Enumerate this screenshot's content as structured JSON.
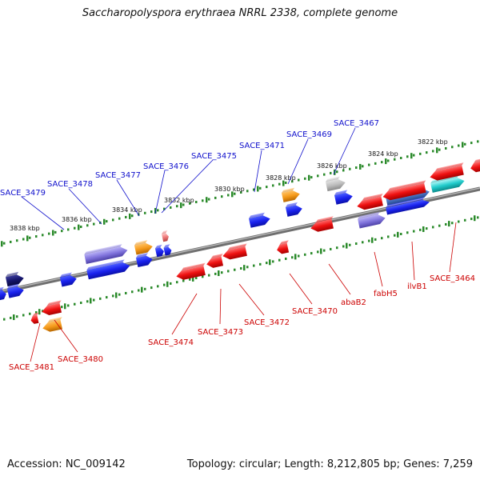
{
  "title": "Saccharopolyspora erythraea NRRL 2338, complete genome",
  "footer": {
    "accession": "Accession: NC_009142",
    "summary": "Topology: circular; Length: 8,212,805 bp; Genes: 7,259"
  },
  "colors": {
    "forward_label": "#1010cc",
    "reverse_label": "#cc0000",
    "backbone": "#777777",
    "tick": "#2a8a2a"
  },
  "kbp_labels_top": [
    "3822 kbp",
    "3824 kbp",
    "3826 kbp",
    "3828 kbp",
    "3830 kbp",
    "3832 kbp",
    "3834 kbp",
    "3836 kbp",
    "3838 kbp"
  ],
  "forward_labels": [
    "SACE_3467",
    "SACE_3469",
    "SACE_3471",
    "SACE_3475",
    "SACE_3476",
    "SACE_3477",
    "SACE_3478",
    "SACE_3479"
  ],
  "reverse_labels": [
    "SACE_3464",
    "ilvB1",
    "fabH5",
    "abaB2",
    "SACE_3470",
    "SACE_3472",
    "SACE_3473",
    "SACE_3474",
    "SACE_3480",
    "SACE_3481"
  ]
}
